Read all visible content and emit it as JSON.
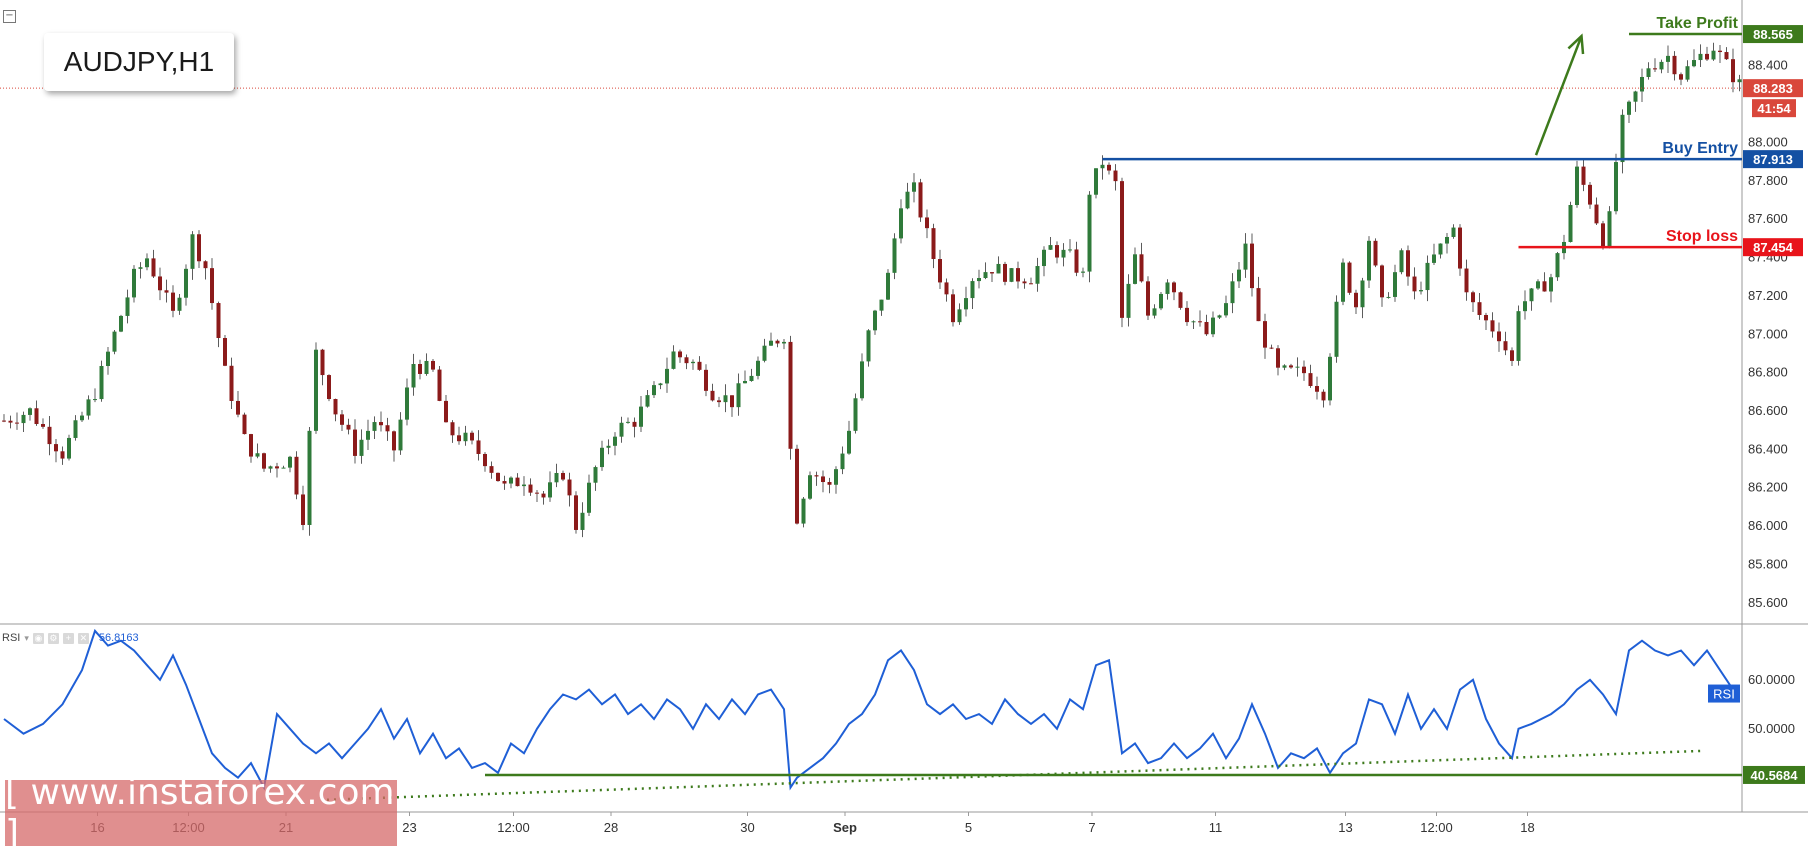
{
  "symbol": "AUDJPY,H1",
  "watermark": "[ www.instaforex.com ]",
  "rsi_indicator": {
    "label": "RSI",
    "value_text": "56.8163",
    "tag": "RSI"
  },
  "colors": {
    "up_candle": "#2f7a3a",
    "down_candle": "#8b1a1a",
    "take_profit": "#3d7a1c",
    "buy_entry": "#1450a3",
    "stop_loss": "#e8141b",
    "current_price": "#d9473b",
    "rsi_line": "#1f5fd6",
    "support_line": "#3d7a1c",
    "rsi_tag": "#1f5fd6"
  },
  "chart_data": [
    {
      "type": "candlestick",
      "title": "AUDJPY,H1",
      "ylim": [
        85.5,
        88.68
      ],
      "y_ticks": [
        "85.600",
        "85.800",
        "86.000",
        "86.200",
        "86.400",
        "86.600",
        "86.800",
        "87.000",
        "87.200",
        "87.400",
        "87.600",
        "87.800",
        "88.000",
        "88.400"
      ],
      "x_tick_labels": [
        "16",
        "12:00",
        "21",
        "23",
        "12:00",
        "28",
        "30",
        "Sep",
        "5",
        "7",
        "11",
        "13",
        "12:00",
        "18"
      ],
      "price_path": [
        [
          0,
          86.55
        ],
        [
          4,
          86.6
        ],
        [
          9,
          86.38
        ],
        [
          14,
          86.7
        ],
        [
          18,
          87.1
        ],
        [
          20,
          87.3
        ],
        [
          22,
          87.4
        ],
        [
          24,
          87.25
        ],
        [
          26,
          87.1
        ],
        [
          29,
          87.5
        ],
        [
          31,
          87.35
        ],
        [
          34,
          86.8
        ],
        [
          37,
          86.45
        ],
        [
          40,
          86.3
        ],
        [
          44,
          86.35
        ],
        [
          46,
          86.05
        ],
        [
          48,
          86.9
        ],
        [
          51,
          86.6
        ],
        [
          54,
          86.4
        ],
        [
          57,
          86.55
        ],
        [
          60,
          86.4
        ],
        [
          63,
          86.85
        ],
        [
          66,
          86.8
        ],
        [
          68,
          86.5
        ],
        [
          71,
          86.45
        ],
        [
          74,
          86.35
        ],
        [
          77,
          86.2
        ],
        [
          80,
          86.25
        ],
        [
          83,
          86.15
        ],
        [
          86,
          86.28
        ],
        [
          88,
          86.0
        ],
        [
          91,
          86.3
        ],
        [
          94,
          86.5
        ],
        [
          97,
          86.55
        ],
        [
          100,
          86.7
        ],
        [
          103,
          86.9
        ],
        [
          106,
          86.85
        ],
        [
          109,
          86.7
        ],
        [
          112,
          86.65
        ],
        [
          115,
          86.8
        ],
        [
          118,
          86.95
        ],
        [
          120,
          87.0
        ],
        [
          121,
          86.4
        ],
        [
          122,
          86.05
        ],
        [
          124,
          86.3
        ],
        [
          127,
          86.2
        ],
        [
          130,
          86.5
        ],
        [
          133,
          87.0
        ],
        [
          136,
          87.3
        ],
        [
          138,
          87.7
        ],
        [
          140,
          87.75
        ],
        [
          143,
          87.4
        ],
        [
          146,
          87.1
        ],
        [
          149,
          87.3
        ],
        [
          152,
          87.35
        ],
        [
          155,
          87.3
        ],
        [
          158,
          87.3
        ],
        [
          161,
          87.45
        ],
        [
          164,
          87.4
        ],
        [
          166,
          87.3
        ],
        [
          167,
          87.75
        ],
        [
          169,
          87.9
        ],
        [
          170,
          87.83
        ],
        [
          171,
          87.78
        ],
        [
          172,
          87.08
        ],
        [
          174,
          87.4
        ],
        [
          176,
          87.1
        ],
        [
          179,
          87.3
        ],
        [
          182,
          87.1
        ],
        [
          185,
          87.0
        ],
        [
          188,
          87.15
        ],
        [
          191,
          87.45
        ],
        [
          193,
          87.05
        ],
        [
          196,
          86.8
        ],
        [
          200,
          86.8
        ],
        [
          203,
          86.7
        ],
        [
          206,
          87.35
        ],
        [
          208,
          87.15
        ],
        [
          210,
          87.5
        ],
        [
          212,
          87.15
        ],
        [
          215,
          87.4
        ],
        [
          217,
          87.2
        ],
        [
          220,
          87.4
        ],
        [
          223,
          87.55
        ],
        [
          225,
          87.2
        ],
        [
          227,
          87.1
        ],
        [
          230,
          87.0
        ],
        [
          232,
          86.85
        ],
        [
          233,
          87.15
        ],
        [
          235,
          87.2
        ],
        [
          238,
          87.3
        ],
        [
          240,
          87.5
        ],
        [
          242,
          87.85
        ],
        [
          244,
          87.7
        ],
        [
          246,
          87.5
        ],
        [
          247,
          87.6
        ],
        [
          248,
          87.9
        ],
        [
          249,
          88.1
        ],
        [
          251,
          88.25
        ],
        [
          253,
          88.4
        ],
        [
          256,
          88.45
        ],
        [
          258,
          88.35
        ],
        [
          261,
          88.45
        ],
        [
          263,
          88.5
        ],
        [
          265,
          88.4
        ],
        [
          267,
          88.3
        ]
      ],
      "annotations": [
        {
          "label": "Take Profit",
          "price": 88.565,
          "price_text": "88.565"
        },
        {
          "label": "Buy Entry",
          "price": 87.913,
          "price_text": "87.913"
        },
        {
          "label": "Stop loss",
          "price": 87.454,
          "price_text": "87.454"
        }
      ],
      "current_price": {
        "price": 88.283,
        "price_text": "88.283",
        "countdown": "41:54"
      }
    },
    {
      "type": "line",
      "title": "RSI",
      "ylim": [
        33.0,
        71.0
      ],
      "y_ticks": [
        "50.0000",
        "60.0000"
      ],
      "current_value_text": "56.8163",
      "support_level": {
        "value": 40.5684,
        "value_text": "40.5684"
      },
      "series": [
        {
          "values": [
            [
              0,
              52
            ],
            [
              3,
              49
            ],
            [
              6,
              51
            ],
            [
              9,
              55
            ],
            [
              12,
              62
            ],
            [
              14,
              70
            ],
            [
              16,
              67
            ],
            [
              18,
              68
            ],
            [
              20,
              66
            ],
            [
              22,
              63
            ],
            [
              24,
              60
            ],
            [
              26,
              65
            ],
            [
              28,
              59
            ],
            [
              30,
              52
            ],
            [
              32,
              45
            ],
            [
              34,
              42
            ],
            [
              36,
              40
            ],
            [
              38,
              43
            ],
            [
              40,
              38
            ],
            [
              42,
              53
            ],
            [
              44,
              50
            ],
            [
              46,
              47
            ],
            [
              48,
              45
            ],
            [
              50,
              47
            ],
            [
              52,
              44
            ],
            [
              54,
              47
            ],
            [
              56,
              50
            ],
            [
              58,
              54
            ],
            [
              60,
              48
            ],
            [
              62,
              52
            ],
            [
              64,
              45
            ],
            [
              66,
              49
            ],
            [
              68,
              44
            ],
            [
              70,
              46
            ],
            [
              72,
              42
            ],
            [
              74,
              43
            ],
            [
              76,
              41
            ],
            [
              78,
              47
            ],
            [
              80,
              45
            ],
            [
              82,
              50
            ],
            [
              84,
              54
            ],
            [
              86,
              57
            ],
            [
              88,
              56
            ],
            [
              90,
              58
            ],
            [
              92,
              55
            ],
            [
              94,
              57
            ],
            [
              96,
              53
            ],
            [
              98,
              55
            ],
            [
              100,
              52
            ],
            [
              102,
              56
            ],
            [
              104,
              54
            ],
            [
              106,
              50
            ],
            [
              108,
              55
            ],
            [
              110,
              52
            ],
            [
              112,
              56
            ],
            [
              114,
              53
            ],
            [
              116,
              57
            ],
            [
              118,
              58
            ],
            [
              120,
              54
            ],
            [
              121,
              38
            ],
            [
              122,
              40
            ],
            [
              124,
              42
            ],
            [
              126,
              44
            ],
            [
              128,
              47
            ],
            [
              130,
              51
            ],
            [
              132,
              53
            ],
            [
              134,
              57
            ],
            [
              136,
              64
            ],
            [
              138,
              66
            ],
            [
              140,
              62
            ],
            [
              142,
              55
            ],
            [
              144,
              53
            ],
            [
              146,
              55
            ],
            [
              148,
              52
            ],
            [
              150,
              53
            ],
            [
              152,
              51
            ],
            [
              154,
              56
            ],
            [
              156,
              53
            ],
            [
              158,
              51
            ],
            [
              160,
              53
            ],
            [
              162,
              50
            ],
            [
              164,
              56
            ],
            [
              166,
              54
            ],
            [
              168,
              63
            ],
            [
              170,
              64
            ],
            [
              172,
              45
            ],
            [
              174,
              47
            ],
            [
              176,
              43
            ],
            [
              178,
              44
            ],
            [
              180,
              47
            ],
            [
              182,
              44
            ],
            [
              184,
              46
            ],
            [
              186,
              49
            ],
            [
              188,
              44
            ],
            [
              190,
              48
            ],
            [
              192,
              55
            ],
            [
              194,
              49
            ],
            [
              196,
              42
            ],
            [
              198,
              45
            ],
            [
              200,
              44
            ],
            [
              202,
              46
            ],
            [
              204,
              41
            ],
            [
              206,
              45
            ],
            [
              208,
              47
            ],
            [
              210,
              56
            ],
            [
              212,
              55
            ],
            [
              214,
              49
            ],
            [
              216,
              57
            ],
            [
              218,
              50
            ],
            [
              220,
              54
            ],
            [
              222,
              50
            ],
            [
              224,
              58
            ],
            [
              226,
              60
            ],
            [
              228,
              52
            ],
            [
              230,
              47
            ],
            [
              232,
              44
            ],
            [
              233,
              50
            ],
            [
              235,
              51
            ],
            [
              238,
              53
            ],
            [
              240,
              55
            ],
            [
              242,
              58
            ],
            [
              244,
              60
            ],
            [
              246,
              57
            ],
            [
              248,
              53
            ],
            [
              250,
              66
            ],
            [
              252,
              68
            ],
            [
              254,
              66
            ],
            [
              256,
              65
            ],
            [
              258,
              66
            ],
            [
              260,
              63
            ],
            [
              262,
              66
            ],
            [
              264,
              62
            ],
            [
              266,
              58
            ],
            [
              267,
              57
            ]
          ]
        }
      ]
    }
  ]
}
